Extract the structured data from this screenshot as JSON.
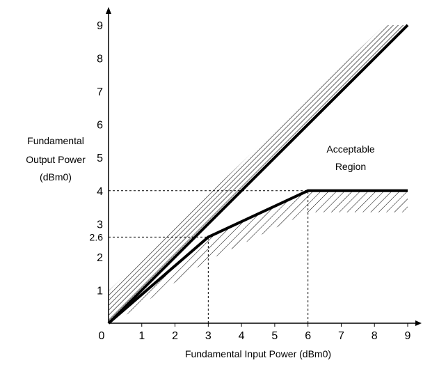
{
  "chart_data": {
    "type": "line",
    "xlabel": "Fundamental Input Power (dBm0)",
    "ylabel_lines": [
      "Fundamental",
      "Output Power",
      "(dBm0)"
    ],
    "xlim": [
      0,
      9
    ],
    "ylim": [
      0,
      9
    ],
    "x_ticks": [
      "0",
      "1",
      "2",
      "3",
      "4",
      "5",
      "6",
      "7",
      "8",
      "9"
    ],
    "y_ticks": [
      "1",
      "2",
      "3",
      "4",
      "5",
      "6",
      "7",
      "8",
      "9"
    ],
    "y_extra_tick": {
      "value": 2.6,
      "label": "2.6"
    },
    "grid": false,
    "region_label_lines": [
      "Acceptable",
      "Region"
    ],
    "series": [
      {
        "x": [
          0,
          9
        ],
        "y": [
          0,
          9
        ]
      },
      {
        "x": [
          0,
          3,
          6,
          9
        ],
        "y": [
          0,
          2.6,
          4,
          4
        ]
      }
    ],
    "reference_lines": [
      {
        "x": [
          0,
          3,
          3
        ],
        "y": [
          2.6,
          2.6,
          0
        ]
      },
      {
        "x": [
          0,
          6,
          6
        ],
        "y": [
          4,
          4,
          0
        ]
      }
    ]
  }
}
